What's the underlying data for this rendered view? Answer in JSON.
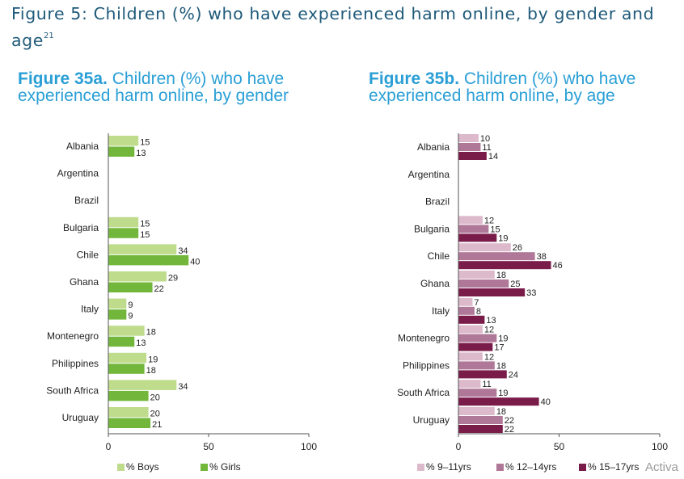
{
  "title": {
    "line1": "Figure 5: Children (%) who have experienced harm online, by gender and",
    "line2": "age",
    "footnote": "21"
  },
  "colors": {
    "boys": "#bfdc8c",
    "girls": "#72b73c",
    "age1": "#ddb9cc",
    "age2": "#b07898",
    "age3": "#7a1c4a",
    "title": "#1f5a7a",
    "heading": "#2a9fd6"
  },
  "chart_data": [
    {
      "type": "bar",
      "orientation": "horizontal",
      "heading_bold": "Figure 35a.",
      "heading_line1": " Children (%) who have",
      "heading_line2": "experienced harm online, by gender",
      "categories": [
        "Albania",
        "Argentina",
        "Brazil",
        "Bulgaria",
        "Chile",
        "Ghana",
        "Italy",
        "Montenegro",
        "Philippines",
        "South Africa",
        "Uruguay"
      ],
      "series": [
        {
          "name": "% Boys",
          "color": "#bfdc8c",
          "values": [
            15,
            null,
            null,
            15,
            34,
            29,
            9,
            18,
            19,
            34,
            20
          ]
        },
        {
          "name": "% Girls",
          "color": "#72b73c",
          "values": [
            13,
            null,
            null,
            15,
            40,
            22,
            9,
            13,
            18,
            20,
            21
          ]
        }
      ],
      "xlim": [
        0,
        100
      ],
      "xticks": [
        "0",
        "50",
        "100"
      ],
      "legend": "bottom"
    },
    {
      "type": "bar",
      "orientation": "horizontal",
      "heading_bold": "Figure 35b.",
      "heading_line1": " Children (%) who have",
      "heading_line2": "experienced harm online, by age",
      "categories": [
        "Albania",
        "Argentina",
        "Brazil",
        "Bulgaria",
        "Chile",
        "Ghana",
        "Italy",
        "Montenegro",
        "Philippines",
        "South Africa",
        "Uruguay"
      ],
      "series": [
        {
          "name": "% 9–11yrs",
          "color": "#ddb9cc",
          "values": [
            10,
            null,
            null,
            12,
            26,
            18,
            7,
            12,
            12,
            11,
            18
          ]
        },
        {
          "name": "% 12–14yrs",
          "color": "#b07898",
          "values": [
            11,
            null,
            null,
            15,
            38,
            25,
            8,
            19,
            18,
            19,
            22
          ]
        },
        {
          "name": "% 15–17yrs",
          "color": "#7a1c4a",
          "values": [
            14,
            null,
            null,
            19,
            46,
            33,
            13,
            17,
            24,
            40,
            22
          ]
        }
      ],
      "xlim": [
        0,
        100
      ],
      "xticks": [
        "0",
        "50",
        "100"
      ],
      "legend": "bottom"
    }
  ],
  "overlay": {
    "text": "Activa"
  }
}
